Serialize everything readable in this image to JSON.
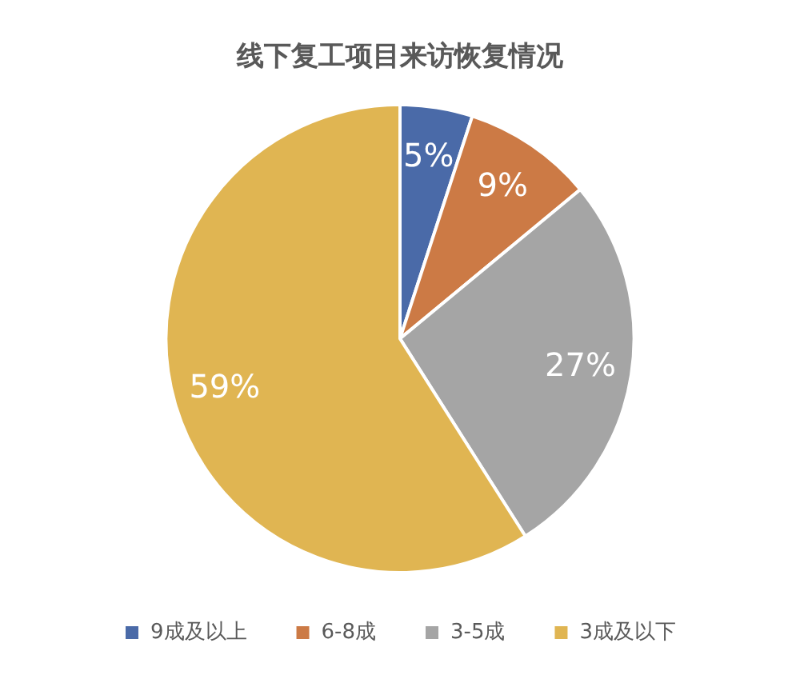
{
  "chart_data": {
    "type": "pie",
    "title": "线下复工项目来访恢复情况",
    "categories": [
      "9成及以上",
      "6-8成",
      "3-5成",
      "3成及以下"
    ],
    "values": [
      5,
      9,
      27,
      59
    ],
    "colors": [
      "#4a6aa8",
      "#cc7a45",
      "#a5a5a5",
      "#e0b552"
    ],
    "value_labels": [
      "5%",
      "9%",
      "27%",
      "59%"
    ],
    "legend": "bottom"
  }
}
